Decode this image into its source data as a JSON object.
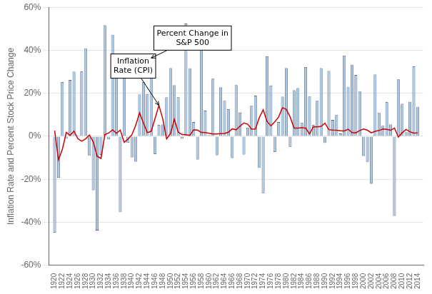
{
  "chart_data": {
    "type": "bar",
    "ylabel": "Inflation Rate and Percent Stock Price Change",
    "x": [
      1920,
      1921,
      1922,
      1923,
      1924,
      1925,
      1926,
      1927,
      1928,
      1929,
      1930,
      1931,
      1932,
      1933,
      1934,
      1935,
      1936,
      1937,
      1938,
      1939,
      1940,
      1941,
      1942,
      1943,
      1944,
      1945,
      1946,
      1947,
      1948,
      1949,
      1950,
      1951,
      1952,
      1953,
      1954,
      1955,
      1956,
      1957,
      1958,
      1959,
      1960,
      1961,
      1962,
      1963,
      1964,
      1965,
      1966,
      1967,
      1968,
      1969,
      1970,
      1971,
      1972,
      1973,
      1974,
      1975,
      1976,
      1977,
      1978,
      1979,
      1980,
      1981,
      1982,
      1983,
      1984,
      1985,
      1986,
      1987,
      1988,
      1989,
      1990,
      1991,
      1992,
      1993,
      1994,
      1995,
      1996,
      1997,
      1998,
      1999,
      2000,
      2001,
      2002,
      2003,
      2004,
      2005,
      2006,
      2007,
      2008,
      2009,
      2010,
      2011,
      2012,
      2013,
      2014
    ],
    "series": [
      {
        "type": "bar",
        "color": "#a8c8e8",
        "values": [
          -44.7,
          -19.3,
          25.1,
          -1.1,
          26.2,
          30.0,
          0.3,
          30.1,
          40.9,
          -8.9,
          -25.1,
          -43.8,
          -8.6,
          51.6,
          -1.4,
          47.2,
          32.0,
          -35.3,
          28.2,
          -3.0,
          -9.8,
          -11.8,
          19.4,
          25.1,
          19.6,
          36.4,
          -8.2,
          5.2,
          5.5,
          18.1,
          31.7,
          23.7,
          18.2,
          -1.1,
          52.4,
          31.6,
          6.6,
          -10.8,
          43.3,
          11.9,
          0.5,
          26.8,
          -8.8,
          22.7,
          16.5,
          12.5,
          -10.1,
          23.8,
          11.0,
          -8.5,
          4.0,
          14.2,
          18.9,
          -14.7,
          -26.5,
          37.2,
          23.6,
          -7.2,
          6.6,
          18.4,
          31.7,
          -4.9,
          21.4,
          22.4,
          6.3,
          32.2,
          18.5,
          5.2,
          16.5,
          31.7,
          -3.1,
          30.4,
          7.6,
          9.9,
          1.3,
          37.5,
          23.0,
          33.3,
          28.5,
          21.0,
          -9.1,
          -11.9,
          -22.1,
          28.7,
          10.9,
          4.9,
          15.8,
          5.5,
          -37.0,
          26.5,
          15.1,
          2.1,
          16.0,
          32.4,
          13.7
        ]
      },
      {
        "type": "line",
        "color": "#cc0000",
        "values": [
          2.6,
          -10.9,
          -6.1,
          1.8,
          0.4,
          2.4,
          -1.1,
          -2.3,
          -1.2,
          0.6,
          -2.6,
          -9.3,
          -10.3,
          0.8,
          1.5,
          3.0,
          1.4,
          2.9,
          -2.8,
          -1.3,
          0.7,
          5.1,
          10.9,
          6.1,
          1.7,
          2.3,
          8.3,
          14.4,
          8.1,
          -1.2,
          1.3,
          7.9,
          1.9,
          0.8,
          0.7,
          0.4,
          3.0,
          2.9,
          1.8,
          1.7,
          1.4,
          1.1,
          1.1,
          1.2,
          1.3,
          1.9,
          3.5,
          3.0,
          4.7,
          6.2,
          5.6,
          3.3,
          3.4,
          8.7,
          12.3,
          6.9,
          4.9,
          6.7,
          9.0,
          13.3,
          12.5,
          8.9,
          3.8,
          3.8,
          4.0,
          3.8,
          1.1,
          4.4,
          4.4,
          4.6,
          6.1,
          3.1,
          2.9,
          2.8,
          2.6,
          2.5,
          3.3,
          1.7,
          1.6,
          2.7,
          3.4,
          2.8,
          1.6,
          2.3,
          2.7,
          3.4,
          3.2,
          2.8,
          3.8,
          -0.4,
          1.6,
          3.2,
          2.1,
          1.5,
          1.6
        ]
      }
    ],
    "xlim": [
      1918.5,
      2015.5
    ],
    "xticks": [
      1920,
      1922,
      1924,
      1926,
      1928,
      1930,
      1932,
      1934,
      1936,
      1938,
      1940,
      1942,
      1944,
      1946,
      1948,
      1950,
      1952,
      1954,
      1956,
      1958,
      1960,
      1962,
      1964,
      1966,
      1968,
      1970,
      1972,
      1974,
      1976,
      1978,
      1980,
      1982,
      1984,
      1986,
      1988,
      1990,
      1992,
      1994,
      1996,
      1998,
      2000,
      2002,
      2004,
      2006,
      2008,
      2010,
      2012,
      2014
    ],
    "ylim": [
      -60,
      60
    ],
    "yticks": [
      {
        "value": -60,
        "label": "-60%"
      },
      {
        "value": -40,
        "label": "-40%"
      },
      {
        "value": -20,
        "label": "-20%"
      },
      {
        "value": 0,
        "label": "0%"
      },
      {
        "value": 20,
        "label": "20%"
      },
      {
        "value": 40,
        "label": "40%"
      },
      {
        "value": 60,
        "label": "60%"
      }
    ],
    "grid": true,
    "annotations": [
      {
        "text": "Inflation\nRate (CPI)",
        "x": 1947,
        "y": 14.4
      },
      {
        "text": "Percent Change in\nS&P 500",
        "x": 1945,
        "y": 36.4
      }
    ]
  }
}
